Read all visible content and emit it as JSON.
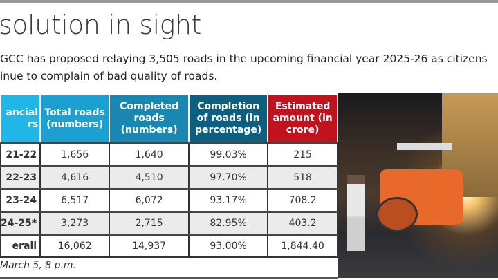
{
  "headline": "solution in sight",
  "summary": [
    "GCC has proposed relaying 3,505 roads in the upcoming financial year 2025-26 as citizens",
    "inue to complain of bad quality of roads."
  ],
  "table": {
    "headers": [
      "ancial\nrs",
      "Total roads (numbers)",
      "Completed roads (numbers)",
      "Completion of roads (in percentage)",
      "Estimated amount (in crore)"
    ],
    "rows": [
      [
        "21-22",
        "1,656",
        "1,640",
        "99.03%",
        "215"
      ],
      [
        "22-23",
        "4,616",
        "4,510",
        "97.70%",
        "518"
      ],
      [
        "23-24",
        "6,517",
        "6,072",
        "93.17%",
        "708.2"
      ],
      [
        "24-25*",
        "3,273",
        "2,715",
        "82.95%",
        "403.2"
      ],
      [
        "erall",
        "16,062",
        "14,937",
        "93.00%",
        "1,844.40"
      ]
    ],
    "header_colors": [
      "#22b5e8",
      "#1ca0d2",
      "#1a86b2",
      "#0e5e7f",
      "#c1121f"
    ]
  },
  "footnote": "March 5, 8 p.m."
}
